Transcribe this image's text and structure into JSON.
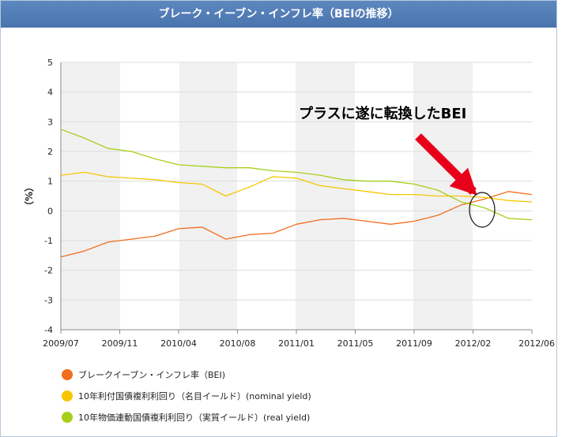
{
  "chart_data": {
    "type": "line",
    "title": "ブレーク・イーブン・インフレ率（BEIの推移）",
    "ylabel": "（%）",
    "ylim": [
      -4,
      5
    ],
    "yticks": [
      5,
      4,
      3,
      2,
      1,
      0,
      -1,
      -2,
      -3,
      -4
    ],
    "x_ticks": [
      "2009/07",
      "2009/11",
      "2010/04",
      "2010/08",
      "2011/01",
      "2011/05",
      "2011/09",
      "2012/02",
      "2012/06"
    ],
    "annotation": "プラスに遂に転換したBEI",
    "grid": "horizontal",
    "legend_position": "bottom-left",
    "series": [
      {
        "name": "ブレークイーブン・インフレ率（BEI)",
        "color": "#f26d1c",
        "values": [
          -1.55,
          -1.35,
          -1.05,
          -0.95,
          -0.85,
          -0.6,
          -0.55,
          -0.95,
          -0.8,
          -0.75,
          -0.45,
          -0.3,
          -0.25,
          -0.35,
          -0.45,
          -0.35,
          -0.15,
          0.2,
          0.4,
          0.65,
          0.55
        ]
      },
      {
        "name": "10年利付国債複利利回り（名目イールド）(nominal yield)",
        "color": "#f7c600",
        "values": [
          1.2,
          1.3,
          1.15,
          1.1,
          1.05,
          0.95,
          0.9,
          0.5,
          0.8,
          1.15,
          1.1,
          0.85,
          0.75,
          0.65,
          0.55,
          0.55,
          0.5,
          0.5,
          0.45,
          0.35,
          0.3
        ]
      },
      {
        "name": "10年物価連動国債複利利回り（実質イールド）(real yield)",
        "color": "#a6cf1a",
        "values": [
          2.75,
          2.45,
          2.1,
          2.0,
          1.75,
          1.55,
          1.5,
          1.45,
          1.45,
          1.35,
          1.3,
          1.2,
          1.05,
          1.0,
          1.0,
          0.9,
          0.7,
          0.3,
          0.1,
          -0.25,
          -0.3
        ]
      }
    ]
  }
}
